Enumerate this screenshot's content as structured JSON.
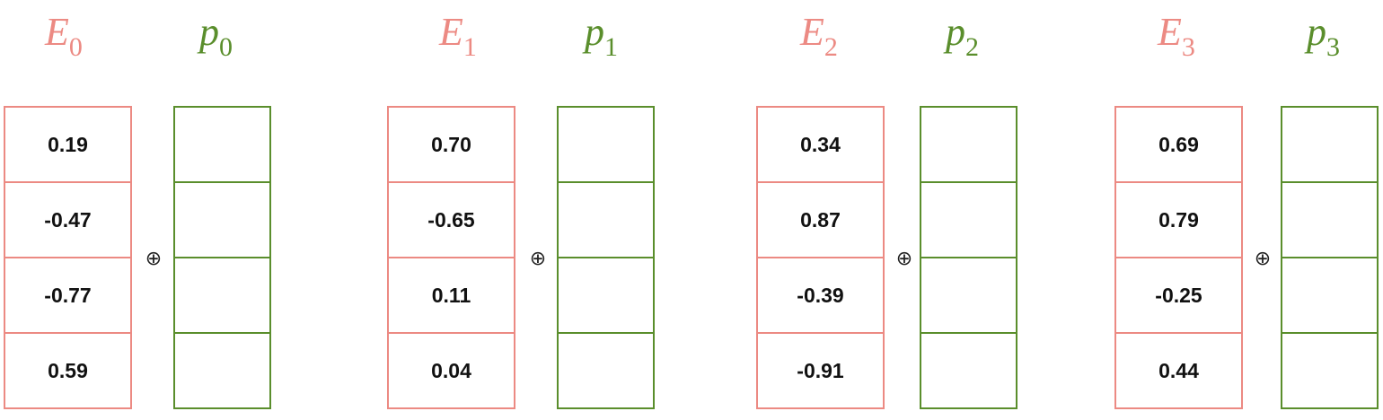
{
  "groups": [
    {
      "e_label": {
        "letter": "E",
        "index": "0"
      },
      "p_label": {
        "letter": "p",
        "index": "0"
      },
      "operator": "⊕",
      "e_values": [
        "0.19",
        "-0.47",
        "-0.77",
        "0.59"
      ]
    },
    {
      "e_label": {
        "letter": "E",
        "index": "1"
      },
      "p_label": {
        "letter": "p",
        "index": "1"
      },
      "operator": "⊕",
      "e_values": [
        "0.70",
        "-0.65",
        "0.11",
        "0.04"
      ]
    },
    {
      "e_label": {
        "letter": "E",
        "index": "2"
      },
      "p_label": {
        "letter": "p",
        "index": "2"
      },
      "operator": "⊕",
      "e_values": [
        "0.34",
        "0.87",
        "-0.39",
        "-0.91"
      ]
    },
    {
      "e_label": {
        "letter": "E",
        "index": "3"
      },
      "p_label": {
        "letter": "p",
        "index": "3"
      },
      "operator": "⊕",
      "e_values": [
        "0.69",
        "0.79",
        "-0.25",
        "0.44"
      ]
    }
  ],
  "colors": {
    "embedding": "#ec8a83",
    "positional": "#5a8e2c"
  }
}
